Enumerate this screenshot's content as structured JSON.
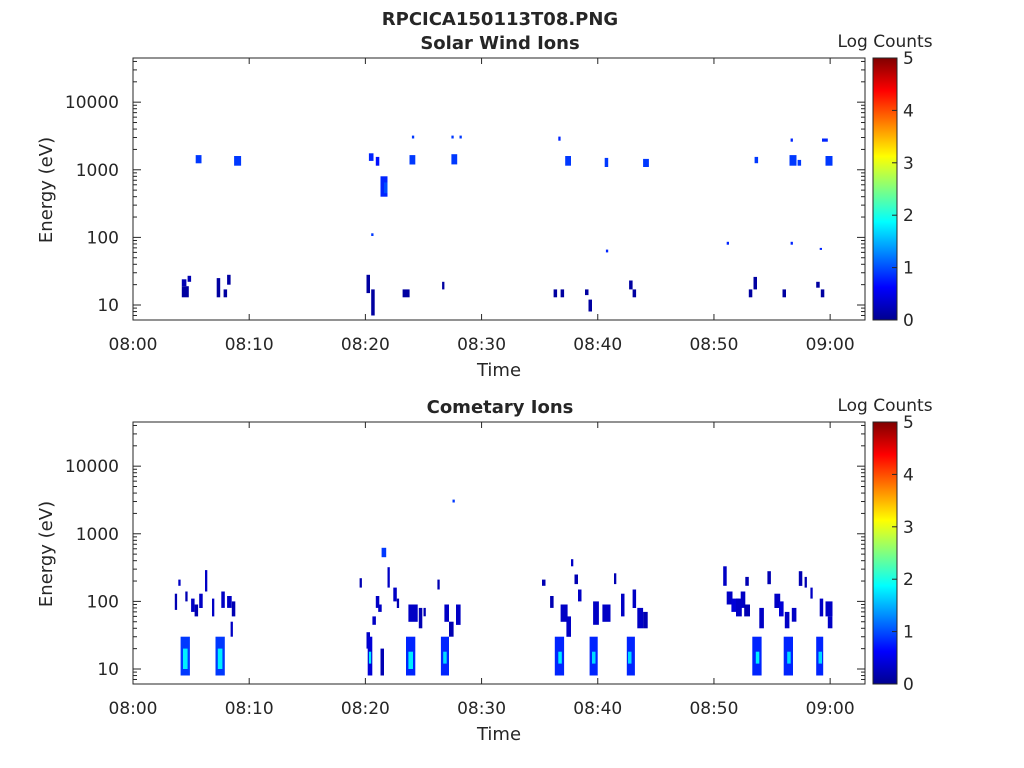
{
  "figure_title": "RPCICA150113T08.PNG",
  "colormap": {
    "stops": [
      "#00008f",
      "#0000ff",
      "#0080ff",
      "#00ffff",
      "#80ff80",
      "#ffff00",
      "#ff8000",
      "#ff0000",
      "#800000"
    ]
  },
  "chart_data": [
    {
      "type": "heatmap",
      "title": "Solar Wind Ions",
      "xlabel": "Time",
      "ylabel": "Energy (eV)",
      "x_unit": "minutes after 08:00",
      "xlim": [
        0,
        63
      ],
      "ylim": [
        6,
        45000
      ],
      "y_scale": "log",
      "xticks": [
        0,
        10,
        20,
        30,
        40,
        50,
        60
      ],
      "xtick_labels": [
        "08:00",
        "08:10",
        "08:20",
        "08:30",
        "08:40",
        "08:50",
        "09:00"
      ],
      "yticks": [
        10,
        100,
        1000,
        10000
      ],
      "ytick_labels": [
        "10",
        "100",
        "1000",
        "10000"
      ],
      "colorbar": {
        "label": "Log Counts",
        "range": [
          0,
          5
        ],
        "ticks": [
          "0",
          "1",
          "2",
          "3",
          "4",
          "5"
        ]
      },
      "cells": [
        [
          4.2,
          0.4,
          19,
          24,
          0.2
        ],
        [
          4.2,
          0.6,
          13,
          19,
          0.1
        ],
        [
          4.7,
          0.3,
          22,
          27,
          0.2
        ],
        [
          5.4,
          0.5,
          1250,
          1650,
          0.9
        ],
        [
          8.7,
          0.6,
          1150,
          1600,
          0.9
        ],
        [
          7.2,
          0.3,
          13,
          25,
          0.1
        ],
        [
          7.8,
          0.3,
          13,
          17,
          0.1
        ],
        [
          8.1,
          0.3,
          20,
          28,
          0.1
        ],
        [
          20.3,
          0.4,
          1350,
          1750,
          0.8
        ],
        [
          20.9,
          0.3,
          1150,
          1550,
          0.7
        ],
        [
          21.3,
          0.6,
          400,
          800,
          0.8
        ],
        [
          21.6,
          0.3,
          450,
          650,
          1.0
        ],
        [
          20.5,
          0.2,
          105,
          115,
          0.9
        ],
        [
          20.1,
          0.3,
          15,
          28,
          0.1
        ],
        [
          20.5,
          0.3,
          7,
          17,
          0.1
        ],
        [
          23.8,
          0.5,
          1200,
          1650,
          0.9
        ],
        [
          24.0,
          0.2,
          2900,
          3200,
          0.9
        ],
        [
          23.2,
          0.6,
          13,
          17,
          0.1
        ],
        [
          26.6,
          0.2,
          17,
          22,
          0.1
        ],
        [
          27.4,
          0.5,
          1200,
          1700,
          0.9
        ],
        [
          27.4,
          0.2,
          2900,
          3200,
          0.9
        ],
        [
          28.1,
          0.2,
          2900,
          3200,
          0.9
        ],
        [
          36.2,
          0.3,
          13,
          17,
          0.1
        ],
        [
          36.8,
          0.3,
          13,
          17,
          0.1
        ],
        [
          37.2,
          0.5,
          1150,
          1600,
          0.9
        ],
        [
          36.6,
          0.2,
          2700,
          3100,
          0.8
        ],
        [
          38.9,
          0.3,
          14,
          17,
          0.1
        ],
        [
          39.2,
          0.3,
          8,
          12,
          0.1
        ],
        [
          40.6,
          0.3,
          1100,
          1500,
          0.9
        ],
        [
          40.7,
          0.2,
          60,
          66,
          0.8
        ],
        [
          42.7,
          0.3,
          17,
          23,
          0.1
        ],
        [
          43.0,
          0.3,
          13,
          17,
          0.1
        ],
        [
          43.9,
          0.5,
          1100,
          1450,
          0.9
        ],
        [
          51.1,
          0.2,
          78,
          86,
          0.8
        ],
        [
          53.0,
          0.3,
          13,
          17,
          0.1
        ],
        [
          53.4,
          0.3,
          17,
          26,
          0.1
        ],
        [
          53.5,
          0.3,
          1250,
          1550,
          0.9
        ],
        [
          55.9,
          0.3,
          13,
          17,
          0.1
        ],
        [
          56.5,
          0.6,
          1150,
          1650,
          0.9
        ],
        [
          56.6,
          0.2,
          2600,
          2900,
          0.8
        ],
        [
          56.6,
          0.2,
          78,
          86,
          0.8
        ],
        [
          57.2,
          0.3,
          1150,
          1400,
          0.9
        ],
        [
          58.8,
          0.3,
          18,
          22,
          0.1
        ],
        [
          59.2,
          0.3,
          13,
          17,
          0.1
        ],
        [
          59.1,
          0.2,
          66,
          70,
          0.8
        ],
        [
          59.6,
          0.6,
          1150,
          1600,
          0.9
        ],
        [
          59.3,
          0.5,
          2600,
          2900,
          0.8
        ]
      ]
    },
    {
      "type": "heatmap",
      "title": "Cometary Ions",
      "xlabel": "Time",
      "ylabel": "Energy (eV)",
      "x_unit": "minutes after 08:00",
      "xlim": [
        0,
        63
      ],
      "ylim": [
        6,
        45000
      ],
      "y_scale": "log",
      "xticks": [
        0,
        10,
        20,
        30,
        40,
        50,
        60
      ],
      "xtick_labels": [
        "08:00",
        "08:10",
        "08:20",
        "08:30",
        "08:40",
        "08:50",
        "09:00"
      ],
      "yticks": [
        10,
        100,
        1000,
        10000
      ],
      "ytick_labels": [
        "10",
        "100",
        "1000",
        "10000"
      ],
      "colorbar": {
        "label": "Log Counts",
        "range": [
          0,
          5
        ],
        "ticks": [
          "0",
          "1",
          "2",
          "3",
          "4",
          "5"
        ]
      },
      "cells": [
        [
          4.1,
          0.8,
          8,
          30,
          0.9
        ],
        [
          4.3,
          0.4,
          10,
          20,
          1.8
        ],
        [
          7.1,
          0.8,
          8,
          30,
          0.9
        ],
        [
          7.3,
          0.4,
          10,
          20,
          1.8
        ],
        [
          3.6,
          0.2,
          75,
          130,
          0.2
        ],
        [
          3.9,
          0.2,
          170,
          210,
          0.3
        ],
        [
          4.5,
          0.2,
          100,
          140,
          0.2
        ],
        [
          5.0,
          0.3,
          70,
          110,
          0.3
        ],
        [
          5.3,
          0.3,
          60,
          90,
          0.2
        ],
        [
          5.7,
          0.3,
          80,
          130,
          0.3
        ],
        [
          6.2,
          0.2,
          140,
          290,
          0.3
        ],
        [
          6.8,
          0.2,
          60,
          110,
          0.3
        ],
        [
          7.6,
          0.3,
          80,
          140,
          0.3
        ],
        [
          8.1,
          0.4,
          80,
          120,
          0.3
        ],
        [
          8.5,
          0.3,
          60,
          100,
          0.2
        ],
        [
          8.4,
          0.2,
          30,
          50,
          0.3
        ],
        [
          19.5,
          0.2,
          160,
          220,
          0.2
        ],
        [
          20.1,
          0.3,
          20,
          35,
          0.3
        ],
        [
          20.2,
          0.4,
          8,
          30,
          0.4
        ],
        [
          20.3,
          0.2,
          12,
          18,
          1.8
        ],
        [
          20.6,
          0.3,
          45,
          60,
          0.3
        ],
        [
          20.9,
          0.3,
          80,
          120,
          0.3
        ],
        [
          21.1,
          0.3,
          70,
          90,
          0.3
        ],
        [
          21.3,
          0.3,
          8,
          20,
          0.2
        ],
        [
          21.4,
          0.4,
          450,
          620,
          0.9
        ],
        [
          21.9,
          0.2,
          160,
          320,
          0.3
        ],
        [
          22.4,
          0.3,
          100,
          160,
          0.3
        ],
        [
          22.7,
          0.2,
          80,
          110,
          0.2
        ],
        [
          23.5,
          0.8,
          8,
          30,
          0.8
        ],
        [
          23.7,
          0.4,
          10,
          18,
          1.8
        ],
        [
          23.7,
          0.8,
          50,
          90,
          0.3
        ],
        [
          24.6,
          0.3,
          40,
          80,
          0.2
        ],
        [
          25.0,
          0.2,
          60,
          80,
          0.2
        ],
        [
          26.2,
          0.2,
          150,
          210,
          0.2
        ],
        [
          26.5,
          0.7,
          8,
          30,
          0.8
        ],
        [
          26.7,
          0.3,
          12,
          18,
          1.7
        ],
        [
          26.8,
          0.4,
          50,
          90,
          0.3
        ],
        [
          27.2,
          0.4,
          30,
          50,
          0.2
        ],
        [
          27.5,
          0.2,
          2900,
          3200,
          0.9
        ],
        [
          27.8,
          0.4,
          45,
          90,
          0.3
        ],
        [
          35.2,
          0.3,
          170,
          210,
          0.2
        ],
        [
          35.9,
          0.3,
          80,
          120,
          0.2
        ],
        [
          36.3,
          0.8,
          8,
          30,
          0.8
        ],
        [
          36.6,
          0.3,
          12,
          18,
          1.8
        ],
        [
          36.8,
          0.6,
          50,
          90,
          0.3
        ],
        [
          37.3,
          0.4,
          30,
          60,
          0.3
        ],
        [
          37.7,
          0.2,
          330,
          420,
          0.3
        ],
        [
          38.0,
          0.3,
          180,
          250,
          0.2
        ],
        [
          38.3,
          0.3,
          100,
          150,
          0.3
        ],
        [
          39.3,
          0.7,
          8,
          30,
          0.8
        ],
        [
          39.5,
          0.3,
          12,
          18,
          1.7
        ],
        [
          39.6,
          0.5,
          45,
          100,
          0.3
        ],
        [
          40.4,
          0.7,
          50,
          90,
          0.3
        ],
        [
          41.4,
          0.2,
          180,
          260,
          0.2
        ],
        [
          42.0,
          0.3,
          60,
          130,
          0.3
        ],
        [
          42.5,
          0.7,
          8,
          30,
          0.8
        ],
        [
          42.6,
          0.3,
          12,
          18,
          1.7
        ],
        [
          43.0,
          0.3,
          80,
          150,
          0.3
        ],
        [
          43.4,
          0.5,
          40,
          80,
          0.3
        ],
        [
          43.9,
          0.4,
          40,
          70,
          0.2
        ],
        [
          50.8,
          0.3,
          170,
          330,
          0.3
        ],
        [
          51.1,
          0.5,
          90,
          140,
          0.3
        ],
        [
          51.5,
          0.7,
          70,
          110,
          0.4
        ],
        [
          51.9,
          0.5,
          60,
          110,
          0.3
        ],
        [
          52.3,
          0.4,
          80,
          140,
          0.3
        ],
        [
          52.7,
          0.3,
          170,
          230,
          0.2
        ],
        [
          52.6,
          0.5,
          60,
          90,
          0.2
        ],
        [
          53.3,
          0.8,
          8,
          30,
          0.8
        ],
        [
          53.6,
          0.3,
          12,
          18,
          1.8
        ],
        [
          53.9,
          0.4,
          40,
          80,
          0.3
        ],
        [
          54.6,
          0.3,
          180,
          280,
          0.2
        ],
        [
          55.2,
          0.5,
          80,
          130,
          0.3
        ],
        [
          55.6,
          0.4,
          60,
          100,
          0.4
        ],
        [
          56.1,
          0.4,
          40,
          70,
          0.3
        ],
        [
          56.0,
          0.8,
          8,
          30,
          0.8
        ],
        [
          56.3,
          0.3,
          12,
          18,
          1.7
        ],
        [
          56.7,
          0.4,
          50,
          80,
          0.3
        ],
        [
          57.3,
          0.3,
          170,
          280,
          0.2
        ],
        [
          57.8,
          0.2,
          160,
          230,
          0.2
        ],
        [
          58.3,
          0.2,
          110,
          160,
          0.3
        ],
        [
          58.8,
          0.6,
          8,
          30,
          0.8
        ],
        [
          59.0,
          0.3,
          12,
          18,
          1.7
        ],
        [
          59.1,
          0.3,
          60,
          110,
          0.3
        ],
        [
          59.6,
          0.6,
          60,
          100,
          0.3
        ],
        [
          59.8,
          0.4,
          40,
          60,
          0.3
        ]
      ]
    }
  ]
}
